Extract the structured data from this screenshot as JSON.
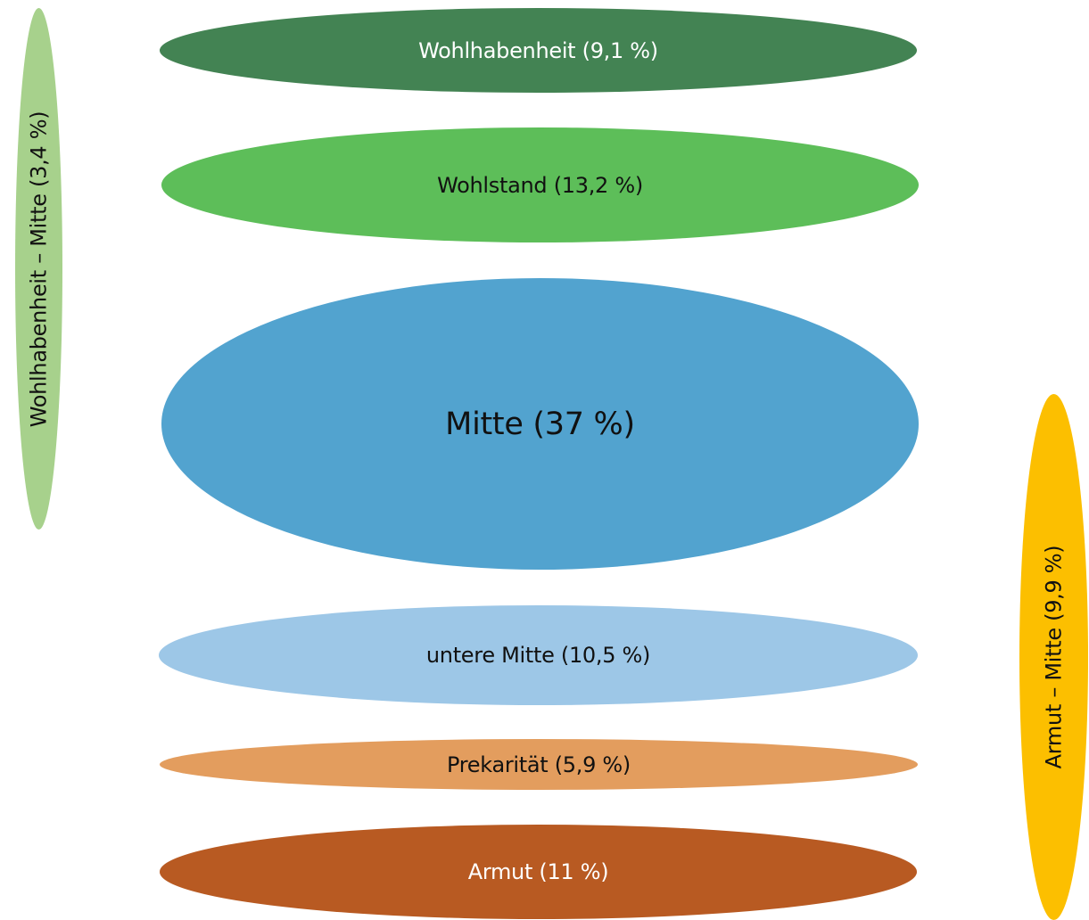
{
  "colors": {
    "wohlhabenheit": "#438353",
    "wohlstand": "#5dbe59",
    "mitte": "#52a3cf",
    "untere_mitte": "#9dc7e7",
    "prekaritaet": "#e39d5e",
    "armut": "#b85a22",
    "wohlhabenheit_mitte": "#a7d18c",
    "armut_mitte": "#fcbf00"
  },
  "layers": [
    {
      "label": "Wohlhabenheit (9,1 %)",
      "text_color": "#ffffff"
    },
    {
      "label": "Wohlstand (13,2 %)",
      "text_color": "#111111"
    },
    {
      "label": "Mitte (37 %)",
      "text_color": "#111111"
    },
    {
      "label": "untere Mitte (10,5 %)",
      "text_color": "#111111"
    },
    {
      "label": "Prekarität (5,9 %)",
      "text_color": "#111111"
    },
    {
      "label": "Armut (11 %)",
      "text_color": "#ffffff"
    }
  ],
  "transitions": [
    {
      "label": "Wohlhabenheit – Mitte (3,4 %)",
      "text_color": "#111111"
    },
    {
      "label": "Armut – Mitte (9,9 %)",
      "text_color": "#111111"
    }
  ]
}
